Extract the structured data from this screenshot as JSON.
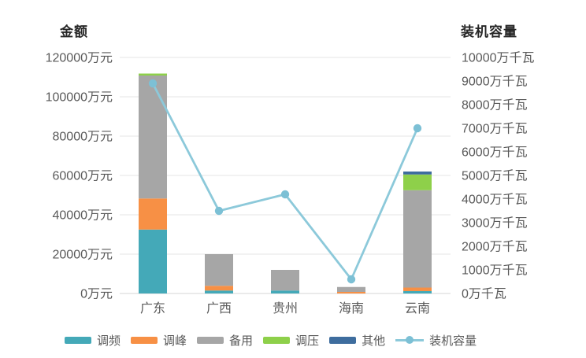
{
  "chart_data": {
    "type": "bar",
    "subtype": "stacked_bars_with_line_dual_axis",
    "categories": [
      "广东",
      "广西",
      "贵州",
      "海南",
      "云南"
    ],
    "bar_series": [
      {
        "name": "调频",
        "color": "#44a9b8",
        "values": [
          32500,
          1500,
          1500,
          0,
          1200
        ]
      },
      {
        "name": "调峰",
        "color": "#f79045",
        "values": [
          15800,
          2400,
          0,
          800,
          1800
        ]
      },
      {
        "name": "备用",
        "color": "#a6a6a6",
        "values": [
          62500,
          16100,
          10500,
          2500,
          49500
        ]
      },
      {
        "name": "调压",
        "color": "#8ed04a",
        "values": [
          1000,
          0,
          0,
          0,
          8000
        ]
      },
      {
        "name": "其他",
        "color": "#3e6d9e",
        "values": [
          0,
          0,
          0,
          0,
          1500
        ]
      }
    ],
    "line_series": {
      "name": "装机容量",
      "color": "#8cc9da",
      "marker_color": "#7cc0d5",
      "values": [
        8900,
        3500,
        4200,
        600,
        7000
      ]
    },
    "left_axis": {
      "title": "金额",
      "min": 0,
      "max": 120000,
      "step": 20000,
      "suffix": "万元"
    },
    "right_axis": {
      "title": "装机容量",
      "min": 0,
      "max": 10000,
      "step": 1000,
      "suffix": "万千瓦"
    },
    "grid": true,
    "legend_position": "bottom"
  },
  "styles": {
    "tick_color": "#595959",
    "grid_color": "#e5e5e5",
    "axis_line_color": "#d6d6d6",
    "title_color": "#262626",
    "legend_text_color": "#595959",
    "background": "#ffffff"
  }
}
